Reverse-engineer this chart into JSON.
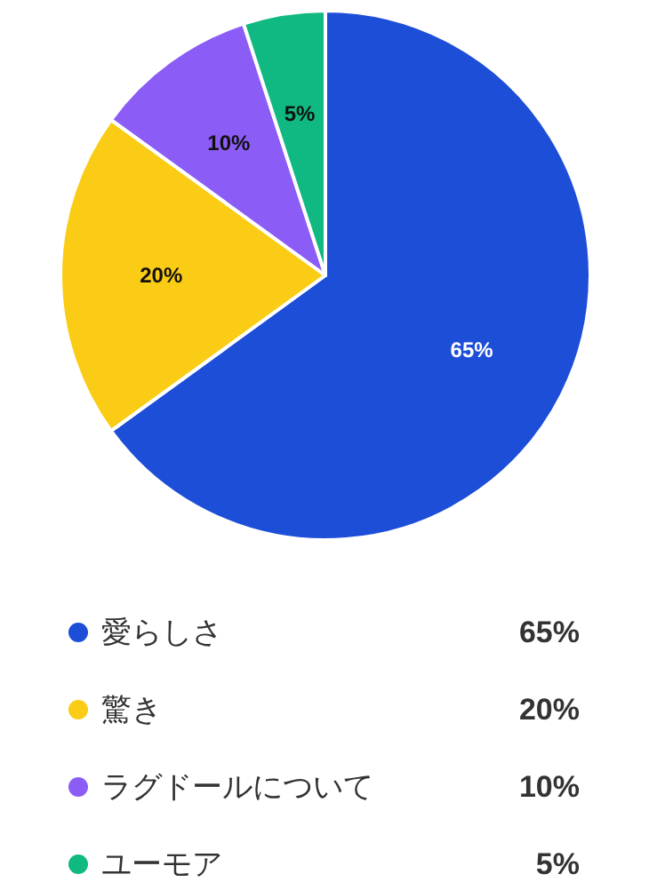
{
  "chart_data": {
    "type": "pie",
    "categories": [
      "愛らしさ",
      "驚き",
      "ラグドールについて",
      "ユーモア"
    ],
    "values": [
      65,
      20,
      10,
      5
    ],
    "colors": [
      "#1d4ed8",
      "#facc15",
      "#8b5cf6",
      "#10b981"
    ],
    "value_labels": [
      "65%",
      "20%",
      "10%",
      "5%"
    ],
    "legend": "bottom"
  }
}
